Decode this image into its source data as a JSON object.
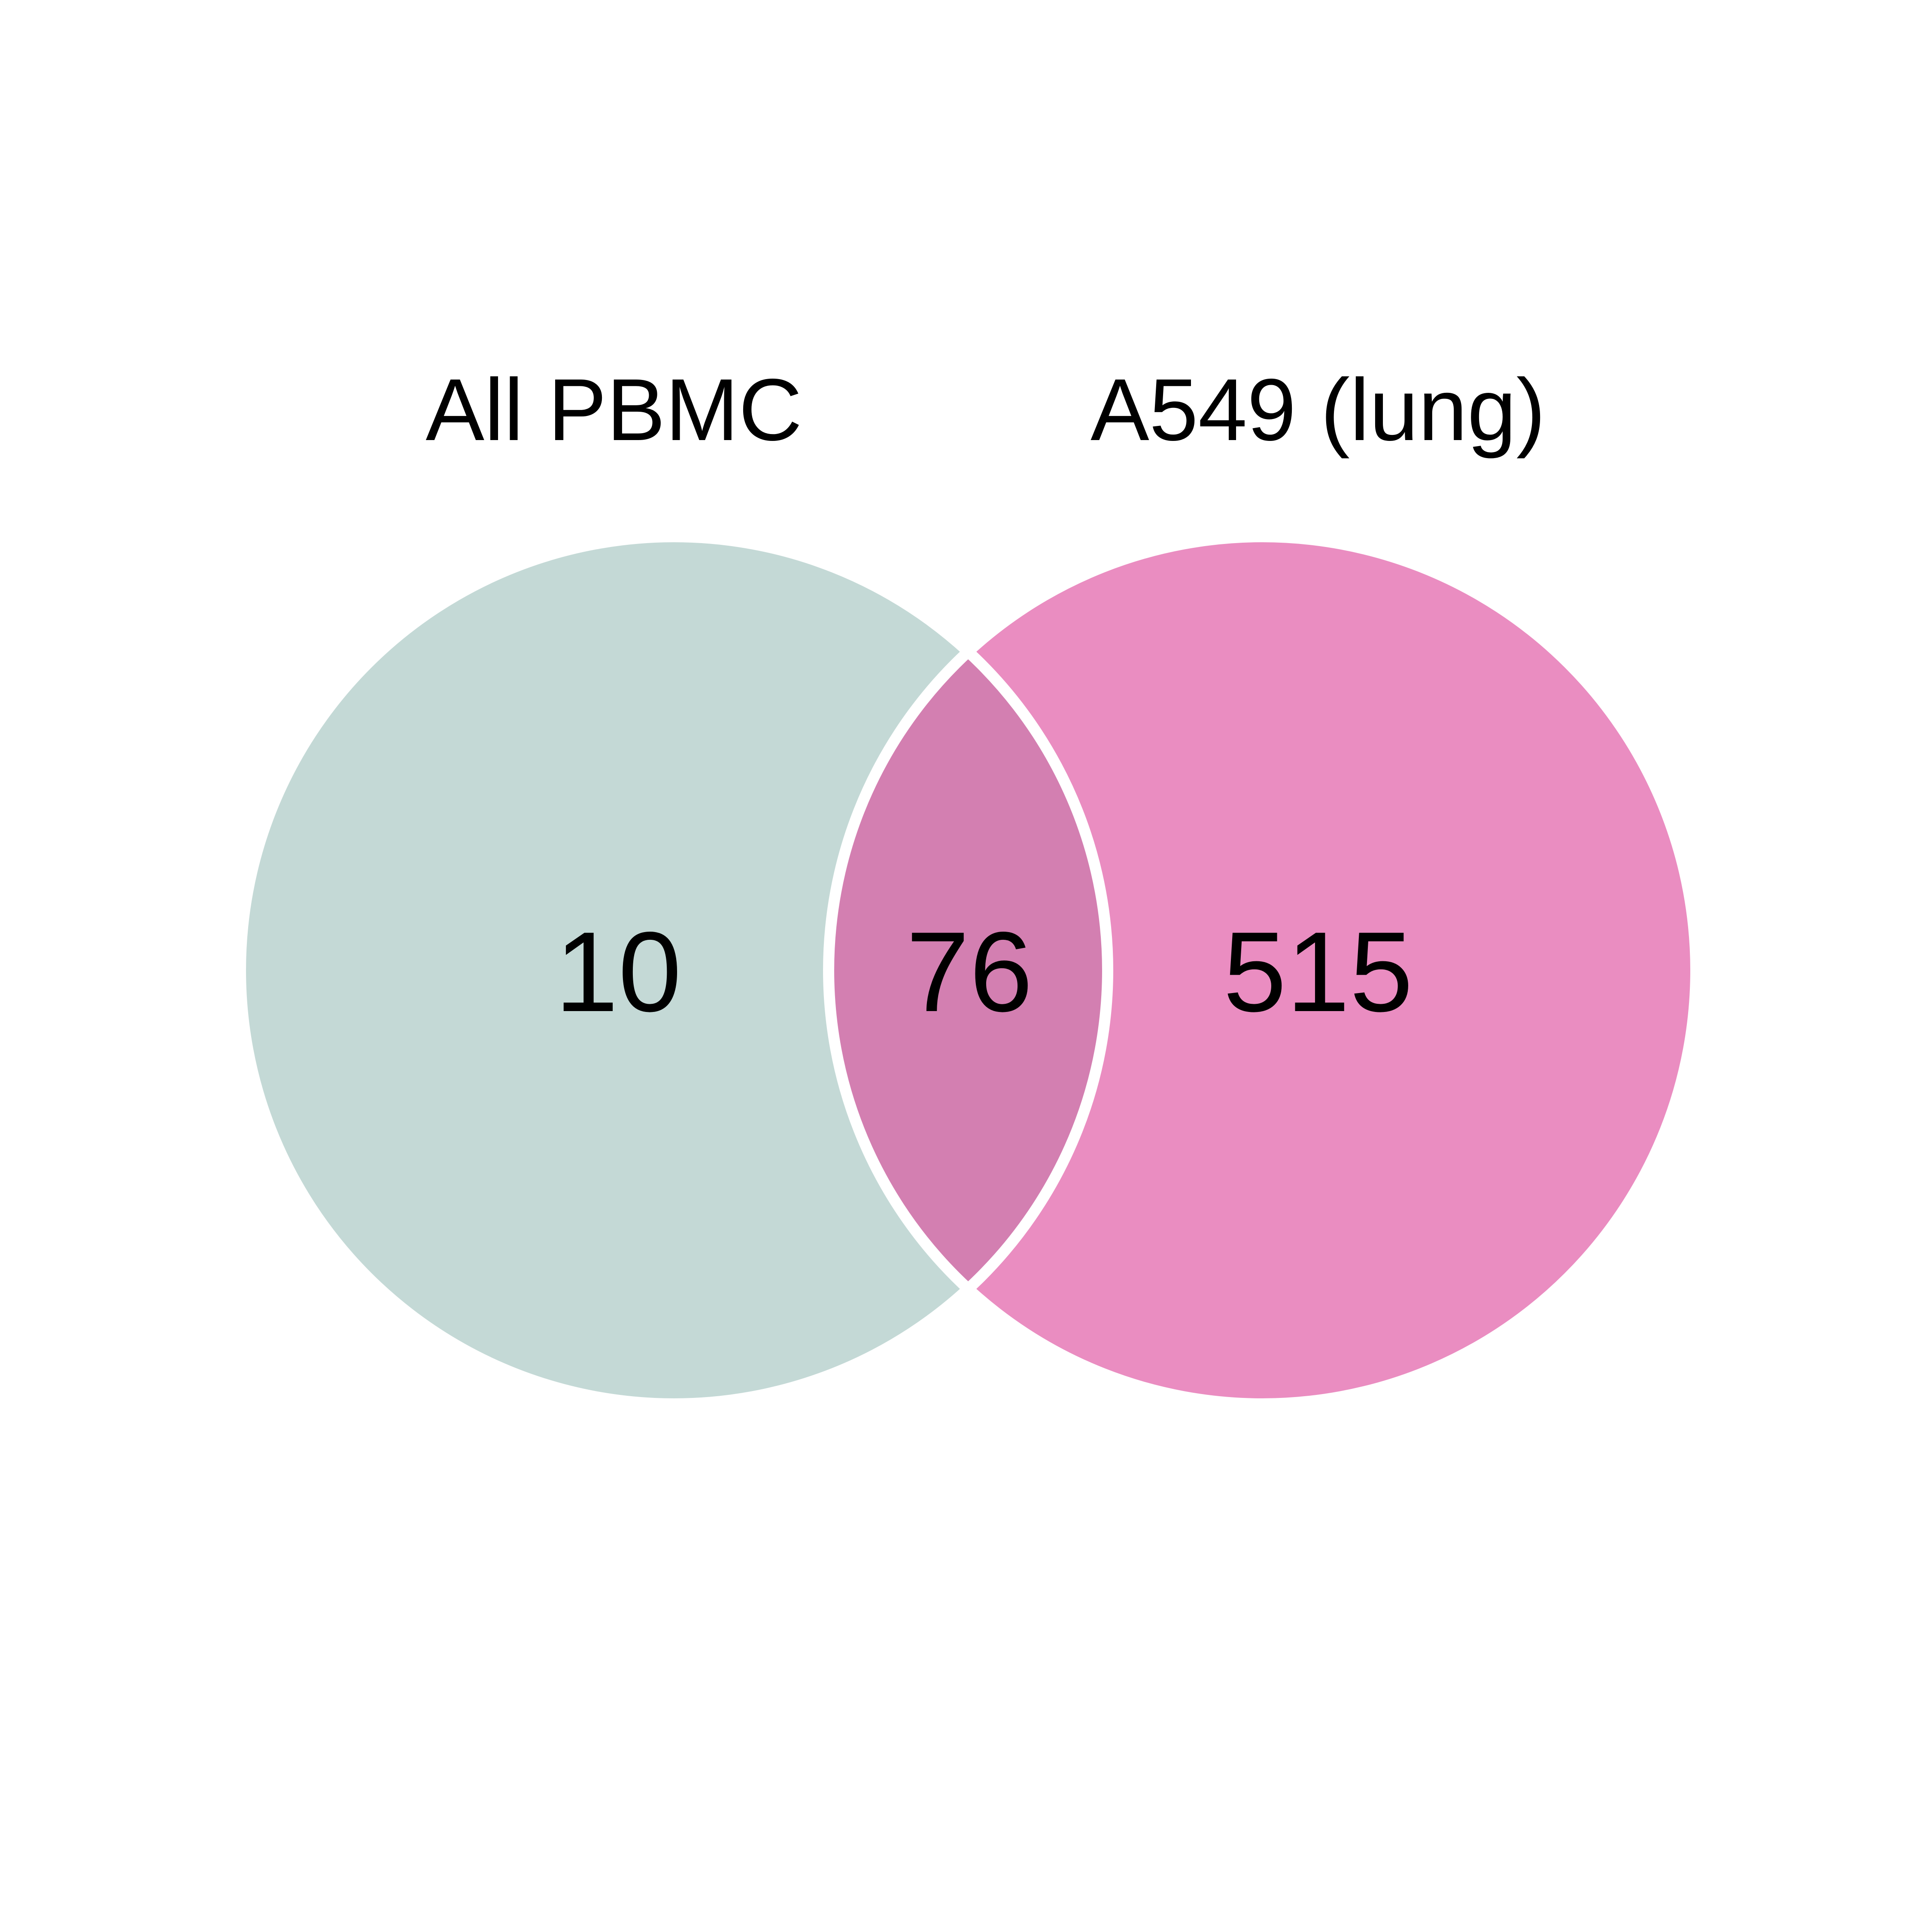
{
  "venn": {
    "sets": [
      {
        "label": "All PBMC",
        "only_count": "10",
        "color": "#c4d9d6"
      },
      {
        "label": "A549 (lung)",
        "only_count": "515",
        "color": "#ea8dc1"
      }
    ],
    "intersection": {
      "count": "76",
      "color": "#d37fb1"
    },
    "outline_color": "#ffffff",
    "text_color": "#000000",
    "background": "#ffffff"
  }
}
